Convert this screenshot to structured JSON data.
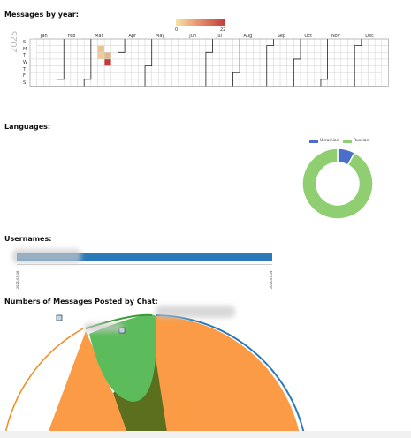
{
  "sections": {
    "messages_by_year": "Messages by year:",
    "languages": "Languages:",
    "usernames": "Usernames:",
    "messages_by_chat": "Numbers of Messages Posted by Chat:"
  },
  "heatmap": {
    "year": "2025",
    "scale_min": "0",
    "scale_max": "22",
    "months": [
      "Jan",
      "Feb",
      "Mar",
      "Apr",
      "May",
      "Jun",
      "Jul",
      "Aug",
      "Sep",
      "Oct",
      "Nov",
      "Dec"
    ],
    "days": [
      "S",
      "M",
      "T",
      "W",
      "T",
      "F",
      "S"
    ],
    "colors": {
      "low": "#f6e3a3",
      "high": "#c13b3b"
    }
  },
  "languages_chart": {
    "legend": [
      {
        "label": "Ukrainian",
        "color": "#4a6ec9"
      },
      {
        "label": "Russian",
        "color": "#8fcf72"
      }
    ]
  },
  "usernames_chart": {
    "start_tick": "2025-03-18",
    "end_tick": "2025-03-19",
    "bar_color": "#2b79b8"
  },
  "chart_data": [
    {
      "type": "heatmap",
      "title": "Messages by year:",
      "year": "2025",
      "color_range": [
        0,
        22
      ],
      "cells": [
        {
          "date": "2025-03-10",
          "value": 4
        },
        {
          "date": "2025-03-11",
          "value": 3
        },
        {
          "date": "2025-03-18",
          "value": 6
        },
        {
          "date": "2025-03-19",
          "value": 22
        }
      ]
    },
    {
      "type": "pie",
      "title": "Languages:",
      "categories": [
        "Ukrainian",
        "Russian"
      ],
      "values": [
        8,
        92
      ]
    }
  ]
}
